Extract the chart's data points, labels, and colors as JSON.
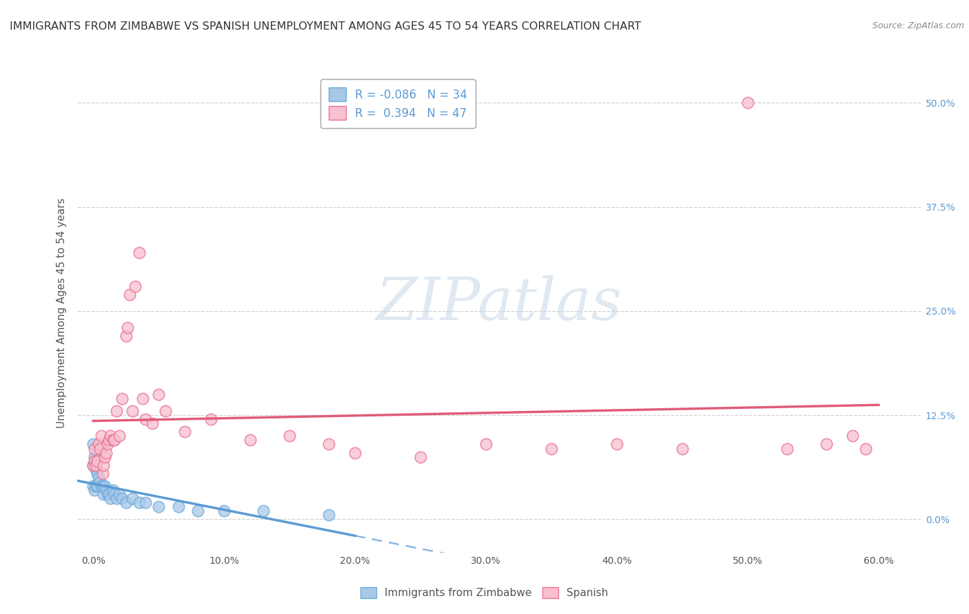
{
  "title": "IMMIGRANTS FROM ZIMBABWE VS SPANISH UNEMPLOYMENT AMONG AGES 45 TO 54 YEARS CORRELATION CHART",
  "source": "Source: ZipAtlas.com",
  "ylabel": "Unemployment Among Ages 45 to 54 years",
  "x_tick_labels": [
    "0.0%",
    "10.0%",
    "20.0%",
    "30.0%",
    "40.0%",
    "50.0%",
    "60.0%"
  ],
  "x_tick_values": [
    0.0,
    0.1,
    0.2,
    0.3,
    0.4,
    0.5,
    0.6
  ],
  "y_tick_labels": [
    "0.0%",
    "12.5%",
    "25.0%",
    "37.5%",
    "50.0%"
  ],
  "y_tick_values": [
    0.0,
    0.125,
    0.25,
    0.375,
    0.5
  ],
  "xlim": [
    -0.012,
    0.632
  ],
  "ylim": [
    -0.04,
    0.535
  ],
  "blue_R": -0.086,
  "blue_N": 34,
  "pink_R": 0.394,
  "pink_N": 47,
  "blue_color": "#a8c8e8",
  "blue_edge_color": "#6aabdb",
  "blue_line_color": "#5b9bd5",
  "pink_color": "#f8c0d0",
  "pink_edge_color": "#e87090",
  "pink_line_color": "#e05c7a",
  "watermark_text": "ZIPatlas",
  "grid_color": "#cccccc",
  "background_color": "#ffffff",
  "title_fontsize": 11.5,
  "axis_label_fontsize": 11,
  "tick_fontsize": 10,
  "legend_fontsize": 12,
  "blue_scatter_x": [
    0.0,
    0.0,
    0.0,
    0.001,
    0.001,
    0.002,
    0.002,
    0.003,
    0.003,
    0.004,
    0.005,
    0.006,
    0.007,
    0.008,
    0.009,
    0.01,
    0.011,
    0.012,
    0.013,
    0.015,
    0.016,
    0.018,
    0.02,
    0.022,
    0.025,
    0.03,
    0.035,
    0.04,
    0.05,
    0.065,
    0.08,
    0.1,
    0.13,
    0.18
  ],
  "blue_scatter_y": [
    0.09,
    0.065,
    0.04,
    0.075,
    0.035,
    0.06,
    0.04,
    0.055,
    0.04,
    0.05,
    0.045,
    0.04,
    0.04,
    0.03,
    0.04,
    0.035,
    0.03,
    0.03,
    0.025,
    0.035,
    0.03,
    0.025,
    0.03,
    0.025,
    0.02,
    0.025,
    0.02,
    0.02,
    0.015,
    0.015,
    0.01,
    0.01,
    0.01,
    0.005
  ],
  "pink_scatter_x": [
    0.0,
    0.001,
    0.001,
    0.002,
    0.003,
    0.004,
    0.005,
    0.006,
    0.007,
    0.008,
    0.009,
    0.01,
    0.011,
    0.012,
    0.013,
    0.015,
    0.016,
    0.018,
    0.02,
    0.022,
    0.025,
    0.026,
    0.028,
    0.03,
    0.032,
    0.035,
    0.038,
    0.04,
    0.045,
    0.05,
    0.055,
    0.07,
    0.09,
    0.12,
    0.15,
    0.18,
    0.2,
    0.25,
    0.3,
    0.35,
    0.4,
    0.45,
    0.5,
    0.53,
    0.56,
    0.58,
    0.59
  ],
  "pink_scatter_y": [
    0.065,
    0.07,
    0.085,
    0.065,
    0.07,
    0.09,
    0.085,
    0.1,
    0.055,
    0.065,
    0.075,
    0.08,
    0.09,
    0.095,
    0.1,
    0.095,
    0.095,
    0.13,
    0.1,
    0.145,
    0.22,
    0.23,
    0.27,
    0.13,
    0.28,
    0.32,
    0.145,
    0.12,
    0.115,
    0.15,
    0.13,
    0.105,
    0.12,
    0.095,
    0.1,
    0.09,
    0.08,
    0.075,
    0.09,
    0.085,
    0.09,
    0.085,
    0.5,
    0.085,
    0.09,
    0.1,
    0.085
  ],
  "blue_line_x_solid_end": 0.2,
  "blue_line_x_dash_end": 0.6,
  "pink_line_x_start": 0.0,
  "pink_line_x_end": 0.6
}
